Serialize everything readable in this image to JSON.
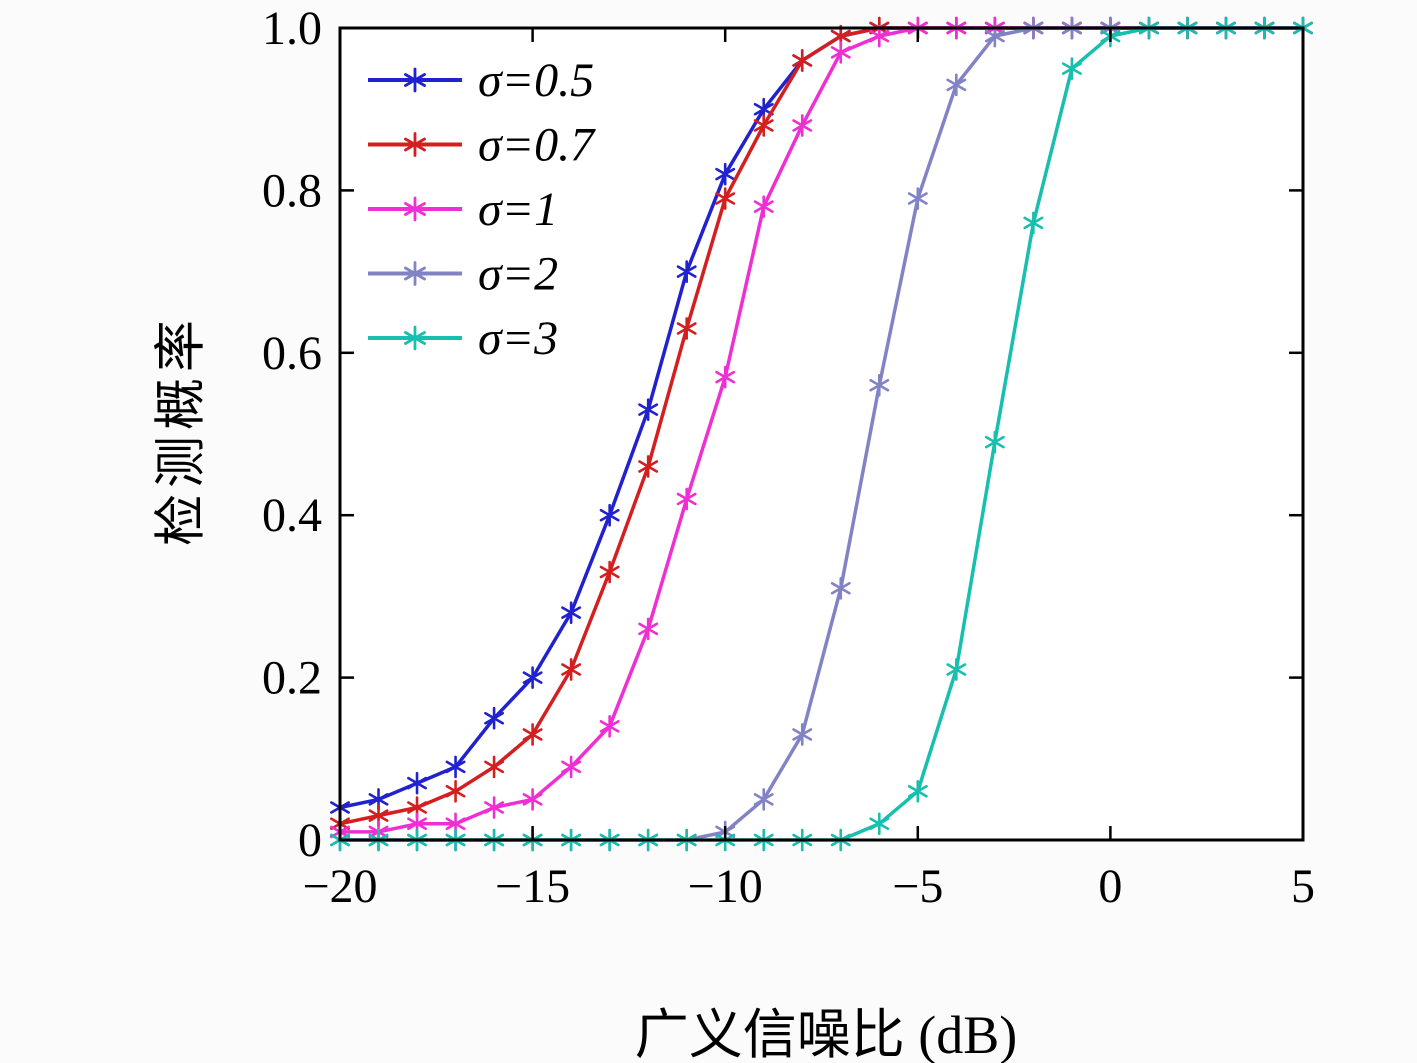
{
  "figure": {
    "background": "#fbfbfb",
    "plot_background": "#ffffff",
    "frame_color": "#000000"
  },
  "chart_data": {
    "type": "line",
    "title": "",
    "xlabel": "广义信噪比 (dB)",
    "ylabel": "检测概率",
    "xlim": [
      -20,
      5
    ],
    "ylim": [
      0,
      1
    ],
    "grid": false,
    "legend_position": "top-left",
    "xticks": [
      -20,
      -15,
      -10,
      -5,
      0,
      5
    ],
    "xtick_labels": [
      "−20",
      "−15",
      "−10",
      "−5",
      "0",
      "5"
    ],
    "yticks": [
      0,
      0.2,
      0.4,
      0.6,
      0.8,
      1.0
    ],
    "ytick_labels": [
      "0",
      "0.2",
      "0.4",
      "0.6",
      "0.8",
      "1.0"
    ],
    "x": [
      -20,
      -19,
      -18,
      -17,
      -16,
      -15,
      -14,
      -13,
      -12,
      -11,
      -10,
      -9,
      -8,
      -7,
      -6,
      -5,
      -4,
      -3,
      -2,
      -1,
      0,
      1,
      2,
      3,
      4,
      5
    ],
    "series": [
      {
        "name": "σ=0.5",
        "color": "#2121cd",
        "marker": "asterisk",
        "values": [
          0.04,
          0.05,
          0.07,
          0.09,
          0.15,
          0.2,
          0.28,
          0.4,
          0.53,
          0.7,
          0.82,
          0.9,
          0.96,
          0.99,
          1,
          1,
          1,
          1,
          1,
          1,
          1,
          1,
          1,
          1,
          1,
          1
        ]
      },
      {
        "name": "σ=0.7",
        "color": "#d31f1f",
        "marker": "asterisk",
        "values": [
          0.02,
          0.03,
          0.04,
          0.06,
          0.09,
          0.13,
          0.21,
          0.33,
          0.46,
          0.63,
          0.79,
          0.88,
          0.96,
          0.99,
          1,
          1,
          1,
          1,
          1,
          1,
          1,
          1,
          1,
          1,
          1,
          1
        ]
      },
      {
        "name": "σ=1",
        "color": "#ee2fd2",
        "marker": "asterisk",
        "values": [
          0.01,
          0.01,
          0.02,
          0.02,
          0.04,
          0.05,
          0.09,
          0.14,
          0.26,
          0.42,
          0.57,
          0.78,
          0.88,
          0.97,
          0.99,
          1,
          1,
          1,
          1,
          1,
          1,
          1,
          1,
          1,
          1,
          1
        ]
      },
      {
        "name": "σ=2",
        "color": "#8183c4",
        "marker": "asterisk",
        "values": [
          0,
          0,
          0,
          0,
          0,
          0,
          0,
          0,
          0,
          0,
          0.01,
          0.05,
          0.13,
          0.31,
          0.56,
          0.79,
          0.93,
          0.99,
          1,
          1,
          1,
          1,
          1,
          1,
          1,
          1
        ]
      },
      {
        "name": "σ=3",
        "color": "#16bfae",
        "marker": "asterisk",
        "values": [
          0,
          0,
          0,
          0,
          0,
          0,
          0,
          0,
          0,
          0,
          0,
          0,
          0,
          0,
          0.02,
          0.06,
          0.21,
          0.49,
          0.76,
          0.95,
          0.99,
          1,
          1,
          1,
          1,
          1
        ]
      }
    ]
  }
}
